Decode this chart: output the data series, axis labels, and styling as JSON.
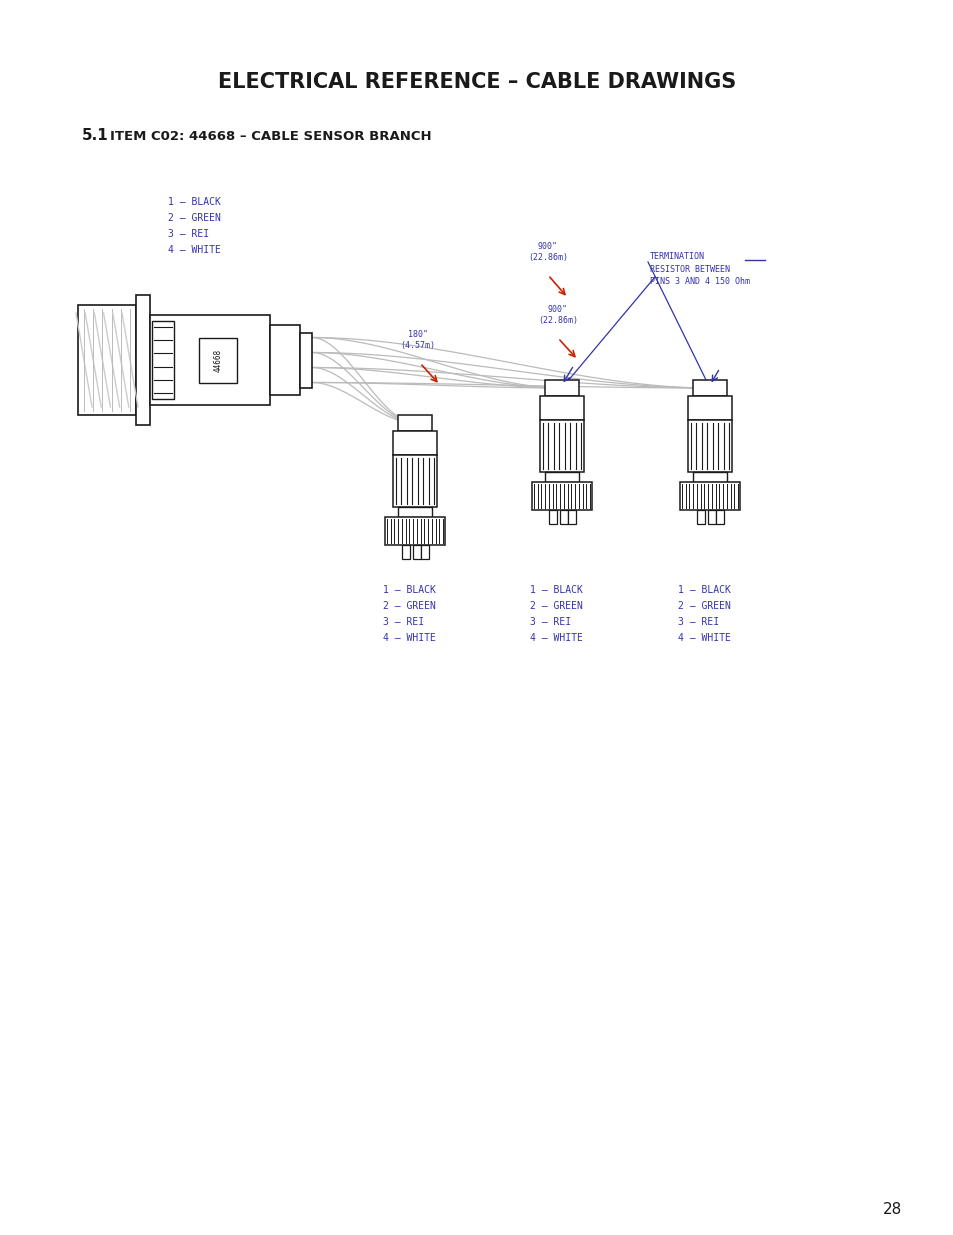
{
  "title": "ELECTRICAL REFERENCE – CABLE DRAWINGS",
  "subtitle_num": "5.1",
  "subtitle_text": "Item C02: 44668 – Cable Sensor Branch",
  "page_number": "28",
  "bg_color": "#ffffff",
  "drawing_color": "#1a1a1a",
  "blue_color": "#3333aa",
  "red_color": "#cc2200",
  "wire_color": "#bbbbbb",
  "legend_lines": [
    "1 – BLACK",
    "2 – GREEN",
    "3 – REI",
    "4 – WHITE"
  ],
  "connector_labels": [
    [
      "1 – BLACK",
      "2 – GREEN",
      "3 – REI",
      "4 – WHITE"
    ],
    [
      "1 – BLACK",
      "2 – GREEN",
      "3 – REI",
      "4 – WHITE"
    ],
    [
      "1 – BLACK",
      "2 – GREEN",
      "3 – REI",
      "4 – WHITE"
    ]
  ],
  "dim_label_top": "900\"\n(22.86m)",
  "dim_label_mid": "900\"\n(22.86m)",
  "dim_label_bot": "180\"\n(4.57m)",
  "termination_label": "TERMINATION\nRESISTOR BETWEEN\nPINS 3 AND 4 150 Ohm"
}
